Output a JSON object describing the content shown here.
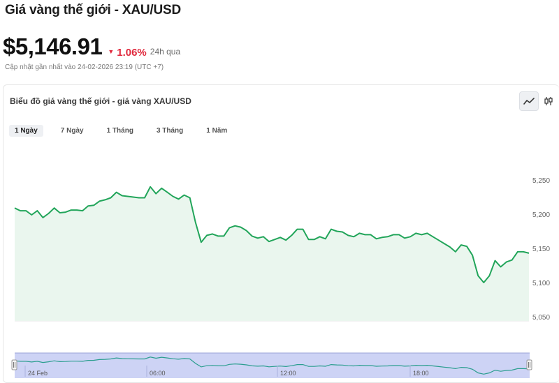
{
  "header": {
    "title": "Giá vàng thế giới - XAU/USD",
    "price": "$5,146.91",
    "change": "1.06%",
    "period": "24h qua",
    "updated": "Cập nhật gần nhất vào 24-02-2026 23:19 (UTC +7)"
  },
  "card": {
    "title": "Biểu đồ giá vàng thế giới - giá vàng XAU/USD",
    "chart_type_icons": [
      "line-chart-icon",
      "candlestick-icon"
    ],
    "active_chart_type": "line"
  },
  "tabs": [
    {
      "label": "1 Ngày",
      "active": true
    },
    {
      "label": "7 Ngày",
      "active": false
    },
    {
      "label": "1 Tháng",
      "active": false
    },
    {
      "label": "3 Tháng",
      "active": false
    },
    {
      "label": "1 Năm",
      "active": false
    }
  ],
  "colors": {
    "line": "#22a55a",
    "area": "#eaf6ee",
    "negative": "#e0283c",
    "navigator_bg": "#cdd3f5",
    "navigator_line": "#2b9e8f"
  },
  "chart_data": {
    "type": "area",
    "title": "",
    "ylabel": "",
    "xlabel": "",
    "ylim": [
      5050,
      5250
    ],
    "yticks": [
      "5,050",
      "5,100",
      "5,150",
      "5,200",
      "5,250"
    ],
    "y_tick_values": [
      5050,
      5100,
      5150,
      5200,
      5250
    ],
    "navigator_ticks": [
      "24 Feb",
      "06:00",
      "12:00",
      "18:00"
    ],
    "values": [
      5209,
      5205,
      5205,
      5199,
      5205,
      5195,
      5201,
      5209,
      5202,
      5203,
      5206,
      5206,
      5205,
      5212,
      5213,
      5219,
      5221,
      5224,
      5232,
      5227,
      5226,
      5225,
      5224,
      5224,
      5240,
      5230,
      5238,
      5232,
      5226,
      5222,
      5228,
      5224,
      5188,
      5159,
      5169,
      5171,
      5168,
      5168,
      5180,
      5183,
      5181,
      5176,
      5168,
      5165,
      5167,
      5160,
      5163,
      5166,
      5162,
      5169,
      5178,
      5178,
      5163,
      5163,
      5167,
      5164,
      5178,
      5175,
      5174,
      5169,
      5167,
      5172,
      5170,
      5170,
      5164,
      5166,
      5167,
      5170,
      5170,
      5165,
      5167,
      5172,
      5170,
      5172,
      5167,
      5162,
      5157,
      5152,
      5145,
      5155,
      5153,
      5140,
      5110,
      5100,
      5110,
      5132,
      5123,
      5130,
      5133,
      5145,
      5145,
      5143
    ]
  }
}
